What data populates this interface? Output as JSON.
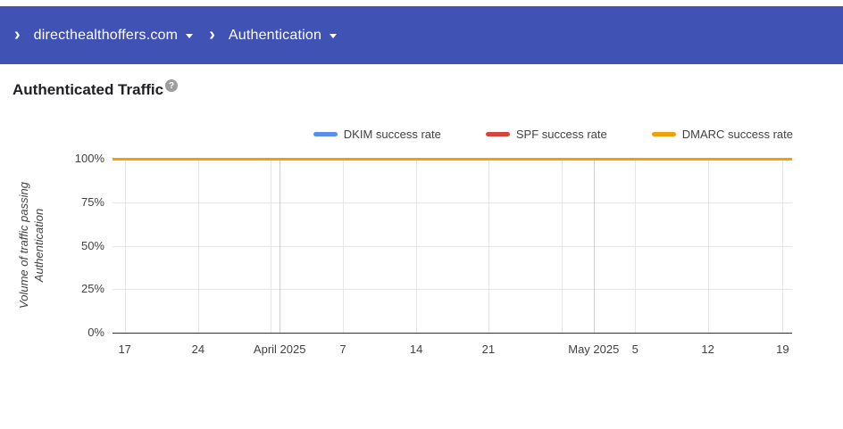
{
  "header": {
    "separator_glyph": "›",
    "domain_label": "directhealthoffers.com",
    "dashboard_label": "Authentication",
    "bg_color": "#4052b4"
  },
  "page": {
    "title": "Authenticated Traffic",
    "help_glyph": "?"
  },
  "chart_data": {
    "type": "line",
    "title": "Authenticated Traffic",
    "ylabel": "Volume of traffic passing Authentication",
    "ylabel_lines": [
      "Volume of traffic passing",
      "Authentication"
    ],
    "ylim": [
      0,
      100
    ],
    "grid": true,
    "legend_position": "top-right",
    "y_ticks": [
      {
        "label": "100%",
        "value": 100
      },
      {
        "label": "75%",
        "value": 75
      },
      {
        "label": "50%",
        "value": 50
      },
      {
        "label": "25%",
        "value": 25
      },
      {
        "label": "0%",
        "value": 0
      }
    ],
    "x_ticks": [
      {
        "label": "17",
        "pos": 0.018,
        "month": false
      },
      {
        "label": "24",
        "pos": 0.126,
        "month": false
      },
      {
        "label": "",
        "pos": 0.233,
        "month": false
      },
      {
        "label": "April 2025",
        "pos": 0.246,
        "month": true
      },
      {
        "label": "7",
        "pos": 0.339,
        "month": false
      },
      {
        "label": "14",
        "pos": 0.447,
        "month": false
      },
      {
        "label": "21",
        "pos": 0.553,
        "month": false
      },
      {
        "label": "",
        "pos": 0.661,
        "month": false
      },
      {
        "label": "May 2025",
        "pos": 0.708,
        "month": true
      },
      {
        "label": "5",
        "pos": 0.769,
        "month": false
      },
      {
        "label": "12",
        "pos": 0.876,
        "month": false
      },
      {
        "label": "19",
        "pos": 0.986,
        "month": false
      }
    ],
    "categories": [
      "17",
      "24",
      "April 2025",
      "7",
      "14",
      "21",
      "May 2025",
      "5",
      "12",
      "19"
    ],
    "series": [
      {
        "name": "DKIM success rate",
        "color": "#5b8def",
        "values": [
          100,
          100,
          100,
          100,
          100,
          100,
          100,
          100,
          100,
          100
        ]
      },
      {
        "name": "SPF success rate",
        "color": "#d6453c",
        "values": [
          100,
          100,
          100,
          100,
          100,
          100,
          100,
          100,
          100,
          100
        ]
      },
      {
        "name": "DMARC success rate",
        "color": "#efa10b",
        "values": [
          100,
          100,
          100,
          100,
          100,
          100,
          100,
          100,
          100,
          100
        ]
      }
    ],
    "colors": {
      "gridline": "#e6e6e6",
      "month_gridline": "#cfcfcf",
      "baseline": "#333333",
      "tick_text": "#424242"
    }
  }
}
